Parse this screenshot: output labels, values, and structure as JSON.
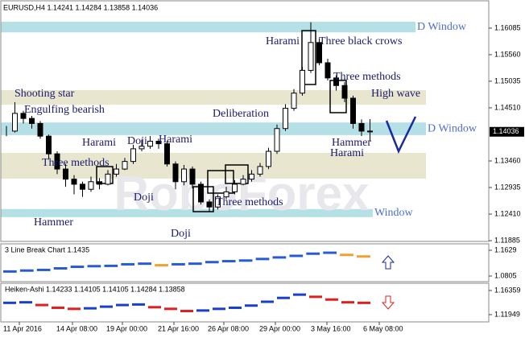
{
  "chart_data": {
    "type": "candlestick",
    "title": "EURUSD,H4 1.14241 1.14284 1.13858 1.14036",
    "current_price": {
      "value": 1.14036,
      "label": "1.14036"
    },
    "watermark": "RoboForex",
    "ylim": [
      1.1187,
      1.1664
    ],
    "yticks": [
      1.16085,
      {
        "value": 1.1556,
        "label": "1.15560"
      },
      1.15035,
      {
        "value": 1.1451,
        "label": "1.14510"
      },
      {
        "value": 1.1346,
        "label": "1.13460"
      },
      1.12935,
      {
        "value": 1.1241,
        "label": "1.12410"
      },
      1.11885
    ],
    "x_labels": [
      "11 Apr 2016",
      "14 Apr 08:00",
      "19 Apr 00:00",
      "21 Apr 16:00",
      "26 Apr 08:00",
      "29 Apr 00:00",
      "3 May 16:00",
      "6 May 08:00"
    ],
    "close": [
      1.1405,
      1.144,
      1.143,
      1.142,
      1.1395,
      1.136,
      1.133,
      1.131,
      1.13,
      1.129,
      1.1305,
      1.13,
      1.132,
      1.133,
      1.1345,
      1.137,
      1.1375,
      1.1385,
      1.138,
      1.134,
      1.1305,
      1.133,
      1.13,
      1.1265,
      1.1255,
      1.1275,
      1.1285,
      1.13,
      1.131,
      1.132,
      1.1335,
      1.1365,
      1.141,
      1.145,
      1.148,
      1.1525,
      1.158,
      1.154,
      1.151,
      1.1495,
      1.147,
      1.142,
      1.1405,
      1.14036
    ],
    "high": [
      1.1415,
      1.1462,
      1.1445,
      1.1435,
      1.1425,
      1.1398,
      1.1365,
      1.134,
      1.1318,
      1.1305,
      1.1315,
      1.1312,
      1.1328,
      1.134,
      1.1352,
      1.1378,
      1.1388,
      1.1395,
      1.139,
      1.1385,
      1.1345,
      1.1338,
      1.1335,
      1.1305,
      1.127,
      1.128,
      1.1295,
      1.1308,
      1.1318,
      1.1328,
      1.1342,
      1.1372,
      1.1418,
      1.1458,
      1.1488,
      1.1532,
      1.162,
      1.1588,
      1.1548,
      1.1515,
      1.1502,
      1.1475,
      1.1428,
      1.14284
    ],
    "low": [
      1.1395,
      1.1402,
      1.142,
      1.141,
      1.139,
      1.135,
      1.132,
      1.1295,
      1.128,
      1.1275,
      1.1285,
      1.129,
      1.1298,
      1.1315,
      1.1328,
      1.134,
      1.1365,
      1.137,
      1.137,
      1.1335,
      1.129,
      1.1298,
      1.1292,
      1.126,
      1.1245,
      1.125,
      1.127,
      1.128,
      1.1298,
      1.1305,
      1.1315,
      1.133,
      1.136,
      1.1405,
      1.1445,
      1.1475,
      1.152,
      1.1535,
      1.1505,
      1.1485,
      1.1462,
      1.141,
      1.1395,
      1.13858
    ],
    "zones": [
      {
        "from": 1.1621,
        "to": 1.16,
        "color": "#b4e0e6",
        "label": "D Window"
      },
      {
        "from": 1.1486,
        "to": 1.1457,
        "color": "#e8e6cf"
      },
      {
        "from": 1.1422,
        "to": 1.1397,
        "color": "#b4e0e6",
        "label": "D Window"
      },
      {
        "from": 1.1362,
        "to": 1.1311,
        "color": "#e8e6cf"
      },
      {
        "from": 1.1251,
        "to": 1.1235,
        "color": "#b4e0e6",
        "label": "Window"
      }
    ],
    "annotations": [
      "Shooting star",
      "Engulfing bearish",
      "Harami",
      "Doji",
      "Harami",
      "Three methods",
      "Doji",
      "Hammer",
      "Doji",
      "Three methods",
      "Deliberation",
      "Harami",
      "Three black crows",
      "Three methods",
      "High wave",
      "Hammer",
      "Harami"
    ],
    "panels": [
      {
        "type": "line-break",
        "title": "3 Line Break Chart 1.1435",
        "ylim": [
          1.0625,
          1.1835
        ],
        "yticks": [
          1.1629,
          1.0805
        ],
        "values": [
          1.095,
          1.098,
          1.1,
          1.105,
          1.11,
          1.112,
          1.113,
          1.118,
          1.12,
          1.115,
          1.118,
          1.12,
          1.125,
          1.128,
          1.13,
          1.135,
          1.14,
          1.145,
          1.152,
          1.155,
          1.148,
          1.143
        ],
        "color": "#2a5bd7",
        "down_color": "#f0a030"
      },
      {
        "type": "heiken-ashi",
        "title": "Heiken-Ashi 1.14233 1.14105 1.14105 1.14284 1.13858",
        "ylim": [
          1.1062,
          1.1768
        ],
        "yticks": [
          1.16359,
          1.11949
        ],
        "values": [
          1.141,
          1.142,
          1.137,
          1.132,
          1.13,
          1.131,
          1.134,
          1.137,
          1.138,
          1.133,
          1.13,
          1.126,
          1.127,
          1.13,
          1.132,
          1.136,
          1.143,
          1.15,
          1.156,
          1.152,
          1.147,
          1.142,
          1.141
        ],
        "color": "#1a3fcc",
        "down_color": "#e02020"
      }
    ]
  }
}
